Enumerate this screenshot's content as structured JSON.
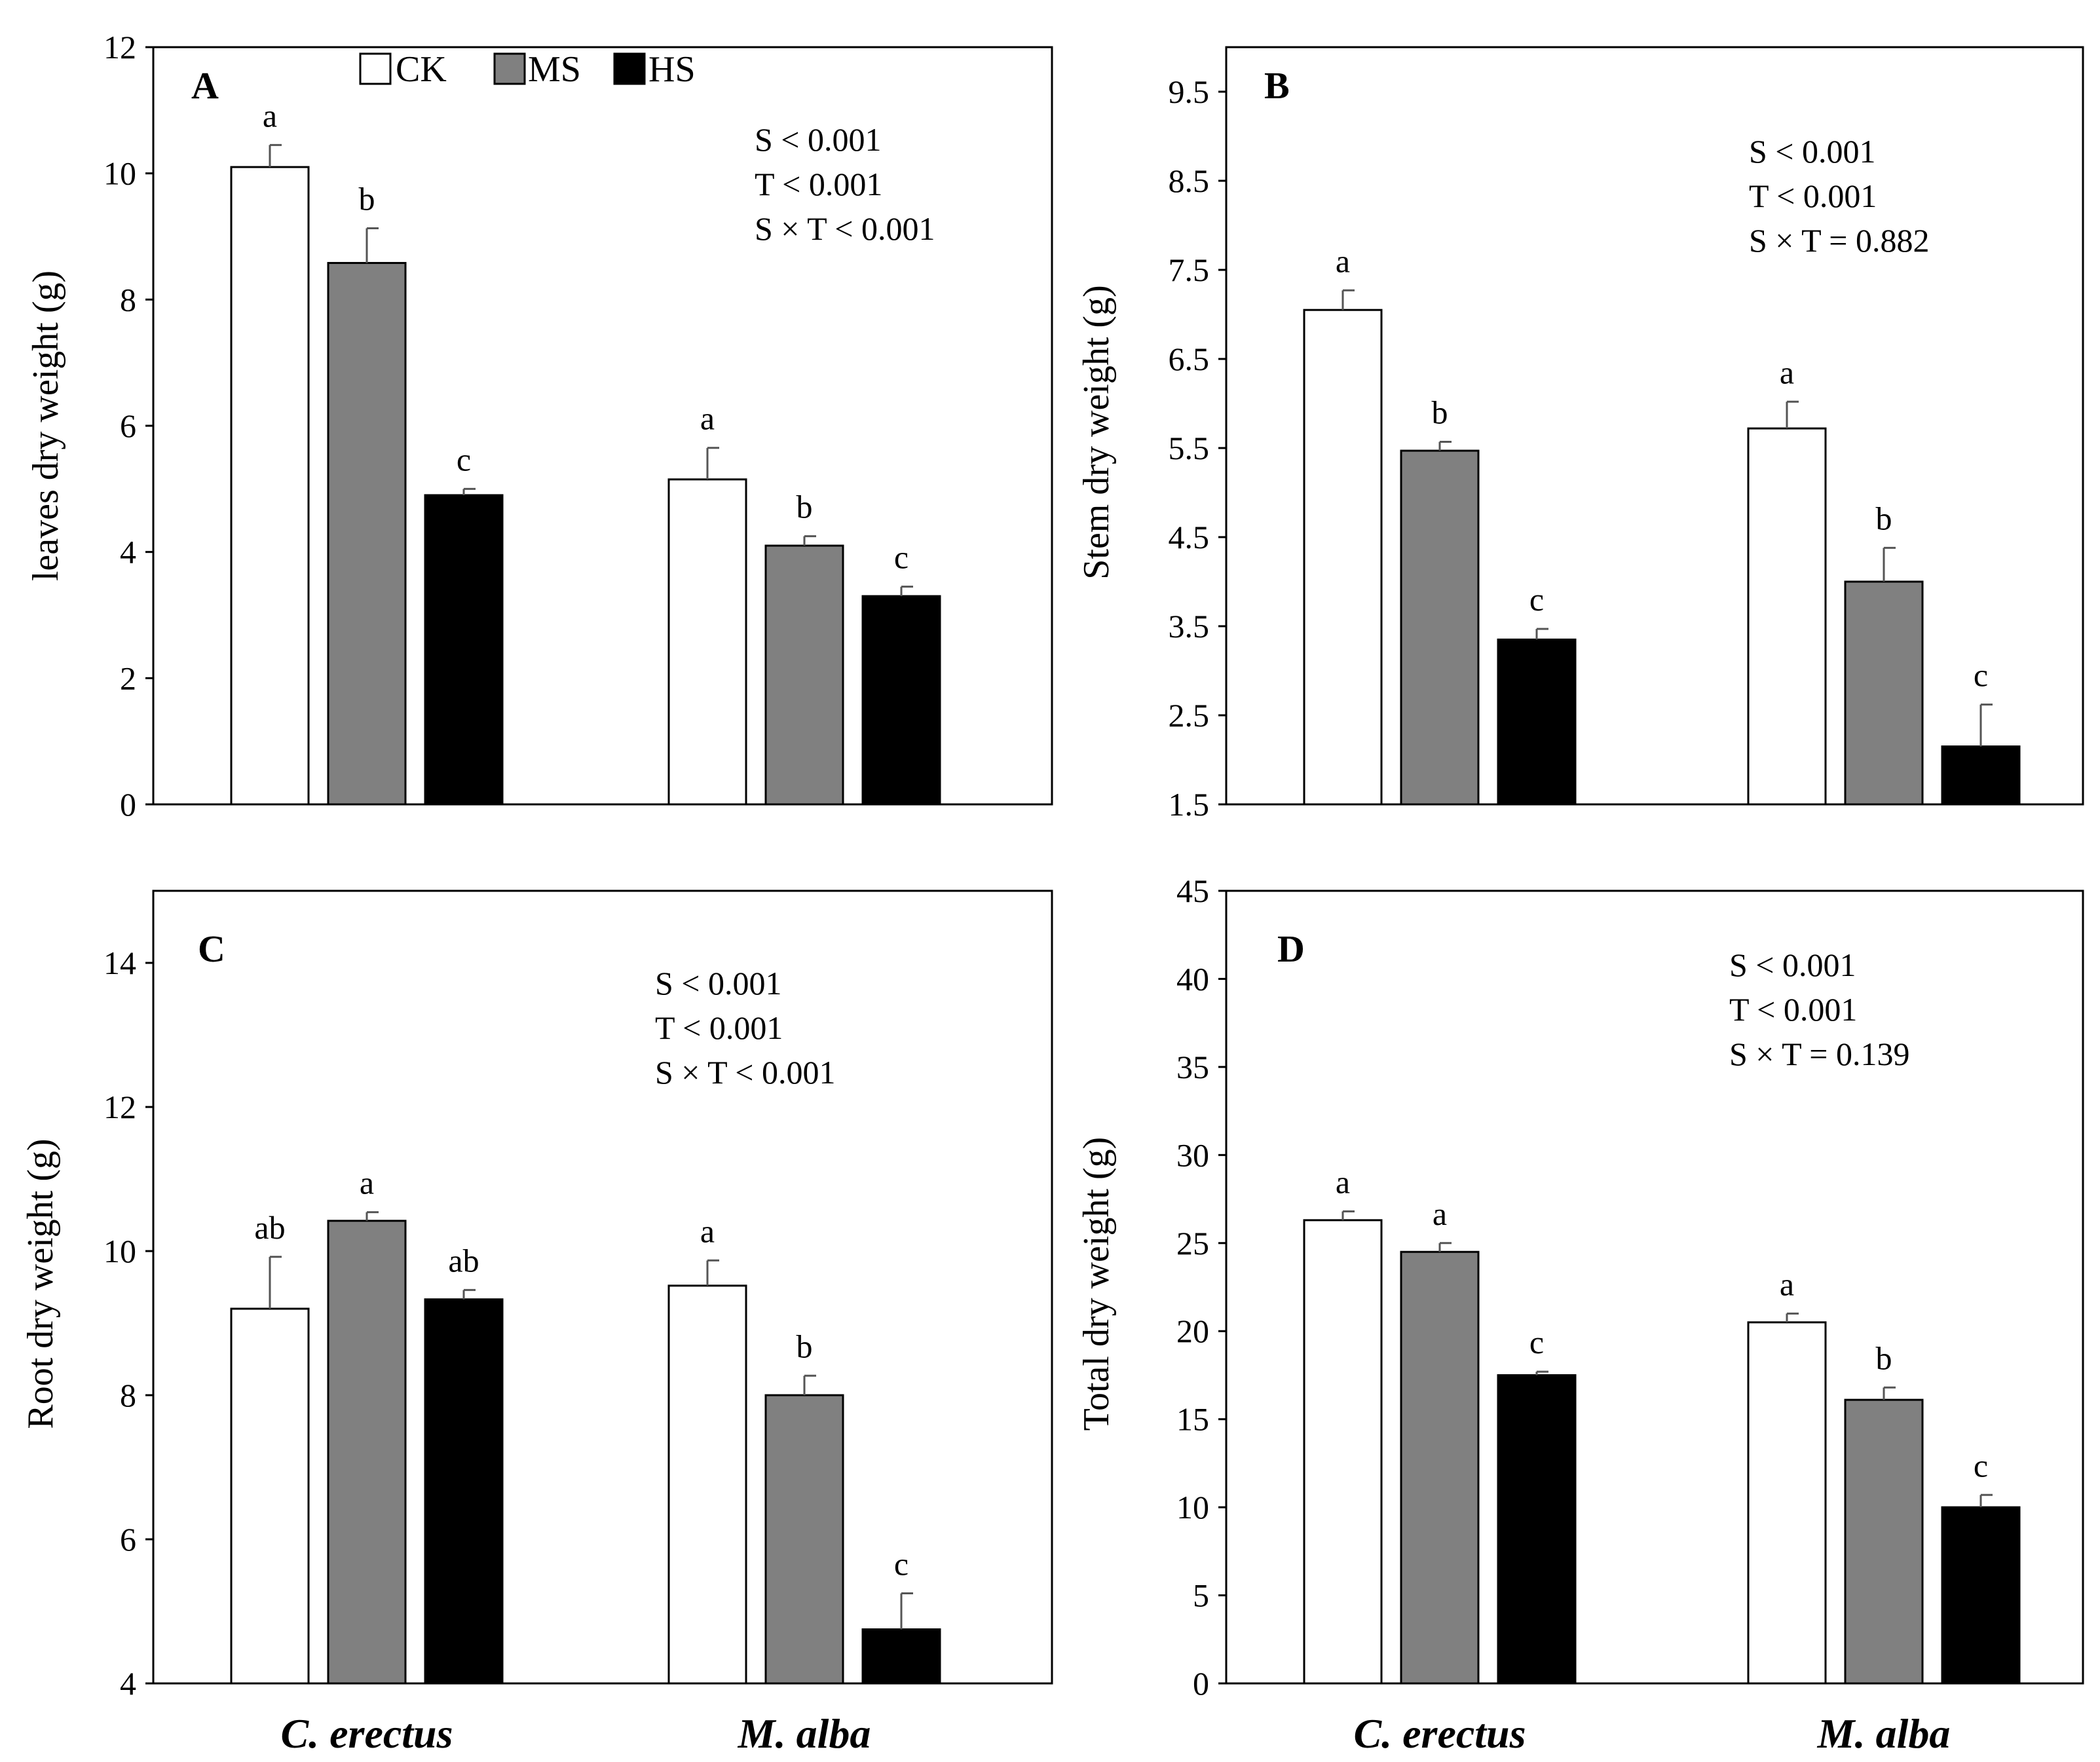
{
  "legend": {
    "items": [
      {
        "label": "CK",
        "color": "#ffffff"
      },
      {
        "label": "MS",
        "color": "#808080"
      },
      {
        "label": "HS",
        "color": "#000000"
      }
    ]
  },
  "species_labels": [
    "C. erectus",
    "M. alba"
  ],
  "chart_data": [
    {
      "type": "bar",
      "panel": "A",
      "ylabel": "leaves dry weight (g)",
      "ylim": [
        0,
        12
      ],
      "yticks": [
        0,
        2,
        4,
        6,
        8,
        10,
        12
      ],
      "categories": [
        "C. erectus",
        "M. alba"
      ],
      "series": [
        {
          "name": "CK",
          "values": [
            10.1,
            5.15
          ],
          "errors": [
            0.35,
            0.5
          ],
          "letters": [
            "a",
            "a"
          ]
        },
        {
          "name": "MS",
          "values": [
            8.58,
            4.1
          ],
          "errors": [
            0.55,
            0.15
          ],
          "letters": [
            "b",
            "b"
          ]
        },
        {
          "name": "HS",
          "values": [
            4.9,
            3.3
          ],
          "errors": [
            0.1,
            0.15
          ],
          "letters": [
            "c",
            "c"
          ]
        }
      ],
      "stats": [
        "S < 0.001",
        "T < 0.001",
        "S × T < 0.001"
      ]
    },
    {
      "type": "bar",
      "panel": "B",
      "ylabel": "Stem dry weight (g)",
      "ylim": [
        1.5,
        10.0
      ],
      "yticks": [
        1.5,
        2.5,
        3.5,
        4.5,
        5.5,
        6.5,
        7.5,
        8.5,
        9.5
      ],
      "categories": [
        "C. erectus",
        "M. alba"
      ],
      "series": [
        {
          "name": "CK",
          "values": [
            7.05,
            5.72
          ],
          "errors": [
            0.22,
            0.3
          ],
          "letters": [
            "a",
            "a"
          ]
        },
        {
          "name": "MS",
          "values": [
            5.47,
            4.0
          ],
          "errors": [
            0.1,
            0.38
          ],
          "letters": [
            "b",
            "b"
          ]
        },
        {
          "name": "HS",
          "values": [
            3.35,
            2.15
          ],
          "errors": [
            0.12,
            0.47
          ],
          "letters": [
            "c",
            "c"
          ]
        }
      ],
      "stats": [
        "S < 0.001",
        "T < 0.001",
        "S × T = 0.882"
      ]
    },
    {
      "type": "bar",
      "panel": "C",
      "ylabel": "Root dry weight (g)",
      "ylim": [
        4,
        15
      ],
      "yticks": [
        4,
        6,
        8,
        10,
        12,
        14
      ],
      "categories": [
        "C. erectus",
        "M. alba"
      ],
      "series": [
        {
          "name": "CK",
          "values": [
            9.2,
            9.52
          ],
          "errors": [
            0.72,
            0.35
          ],
          "letters": [
            "ab",
            "a"
          ]
        },
        {
          "name": "MS",
          "values": [
            10.42,
            8.0
          ],
          "errors": [
            0.12,
            0.27
          ],
          "letters": [
            "a",
            "b"
          ]
        },
        {
          "name": "HS",
          "values": [
            9.33,
            4.75
          ],
          "errors": [
            0.13,
            0.5
          ],
          "letters": [
            "ab",
            "c"
          ]
        }
      ],
      "stats": [
        "S < 0.001",
        "T < 0.001",
        "S × T < 0.001"
      ]
    },
    {
      "type": "bar",
      "panel": "D",
      "ylabel": "Total dry weight (g)",
      "ylim": [
        0,
        45
      ],
      "yticks": [
        0,
        5,
        10,
        15,
        20,
        25,
        30,
        35,
        40,
        45
      ],
      "categories": [
        "C. erectus",
        "M. alba"
      ],
      "series": [
        {
          "name": "CK",
          "values": [
            26.3,
            20.5
          ],
          "errors": [
            0.5,
            0.5
          ],
          "letters": [
            "a",
            "a"
          ]
        },
        {
          "name": "MS",
          "values": [
            24.5,
            16.1
          ],
          "errors": [
            0.5,
            0.7
          ],
          "letters": [
            "a",
            "b"
          ]
        },
        {
          "name": "HS",
          "values": [
            17.5,
            10.0
          ],
          "errors": [
            0.2,
            0.7
          ],
          "letters": [
            "c",
            "c"
          ]
        }
      ],
      "stats": [
        "S < 0.001",
        "T < 0.001",
        "S × T = 0.139"
      ]
    }
  ]
}
